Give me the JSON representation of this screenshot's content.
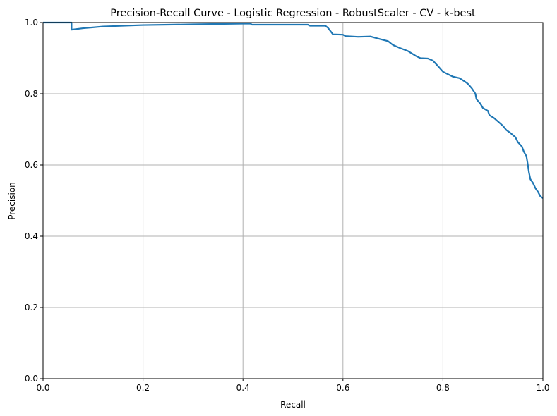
{
  "chart_data": {
    "type": "line",
    "title": "Precision-Recall Curve - Logistic Regression - RobustScaler - CV - k-best",
    "xlabel": "Recall",
    "ylabel": "Precision",
    "xlim": [
      0.0,
      1.0
    ],
    "ylim": [
      0.0,
      1.0
    ],
    "grid": true,
    "x_ticks": [
      "0.0",
      "0.2",
      "0.4",
      "0.6",
      "0.8",
      "1.0"
    ],
    "y_ticks": [
      "0.0",
      "0.2",
      "0.4",
      "0.6",
      "0.8",
      "1.0"
    ],
    "line_color": "#1f77b4",
    "grid_color": "#b0b0b0",
    "series": [
      {
        "points": [
          [
            0.0,
            1.0
          ],
          [
            0.057,
            1.0
          ],
          [
            0.057,
            0.98
          ],
          [
            0.08,
            0.984
          ],
          [
            0.12,
            0.989
          ],
          [
            0.2,
            0.993
          ],
          [
            0.3,
            0.995
          ],
          [
            0.4,
            0.997
          ],
          [
            0.415,
            0.997
          ],
          [
            0.418,
            0.994
          ],
          [
            0.5,
            0.994
          ],
          [
            0.53,
            0.994
          ],
          [
            0.534,
            0.991
          ],
          [
            0.565,
            0.991
          ],
          [
            0.57,
            0.985
          ],
          [
            0.58,
            0.967
          ],
          [
            0.6,
            0.966
          ],
          [
            0.605,
            0.962
          ],
          [
            0.63,
            0.96
          ],
          [
            0.655,
            0.961
          ],
          [
            0.67,
            0.955
          ],
          [
            0.69,
            0.948
          ],
          [
            0.7,
            0.937
          ],
          [
            0.715,
            0.928
          ],
          [
            0.73,
            0.92
          ],
          [
            0.745,
            0.907
          ],
          [
            0.755,
            0.9
          ],
          [
            0.77,
            0.899
          ],
          [
            0.78,
            0.893
          ],
          [
            0.79,
            0.878
          ],
          [
            0.8,
            0.862
          ],
          [
            0.81,
            0.855
          ],
          [
            0.82,
            0.848
          ],
          [
            0.833,
            0.844
          ],
          [
            0.843,
            0.835
          ],
          [
            0.85,
            0.828
          ],
          [
            0.858,
            0.815
          ],
          [
            0.865,
            0.8
          ],
          [
            0.867,
            0.785
          ],
          [
            0.875,
            0.772
          ],
          [
            0.88,
            0.76
          ],
          [
            0.89,
            0.752
          ],
          [
            0.893,
            0.74
          ],
          [
            0.902,
            0.732
          ],
          [
            0.912,
            0.72
          ],
          [
            0.92,
            0.71
          ],
          [
            0.927,
            0.698
          ],
          [
            0.935,
            0.69
          ],
          [
            0.945,
            0.678
          ],
          [
            0.95,
            0.664
          ],
          [
            0.958,
            0.652
          ],
          [
            0.962,
            0.637
          ],
          [
            0.967,
            0.625
          ],
          [
            0.97,
            0.6
          ],
          [
            0.972,
            0.58
          ],
          [
            0.975,
            0.56
          ],
          [
            0.98,
            0.55
          ],
          [
            0.985,
            0.535
          ],
          [
            0.99,
            0.525
          ],
          [
            0.995,
            0.512
          ],
          [
            1.0,
            0.507
          ]
        ]
      }
    ]
  }
}
